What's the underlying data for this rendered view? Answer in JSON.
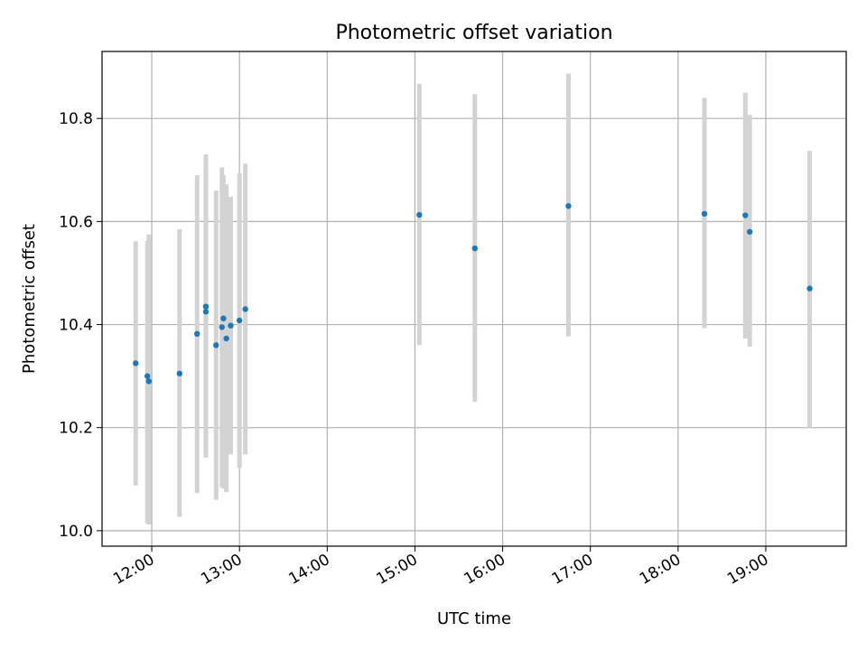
{
  "chart_data": {
    "type": "scatter",
    "title": "Photometric offset variation",
    "xlabel": "UTC time",
    "ylabel": "Photometric offset",
    "x_unit": "hours",
    "xlim": [
      "11:26",
      "19:55"
    ],
    "ylim": [
      9.97,
      10.93
    ],
    "x_ticks": [
      "12:00",
      "13:00",
      "14:00",
      "15:00",
      "16:00",
      "17:00",
      "18:00",
      "19:00"
    ],
    "y_ticks": [
      10.0,
      10.2,
      10.4,
      10.6,
      10.8
    ],
    "y_tick_labels": [
      "10.0",
      "10.2",
      "10.4",
      "10.6",
      "10.8"
    ],
    "grid": true,
    "colors": {
      "point": "#1f77b4",
      "errorbar": "#d3d3d3"
    },
    "series": [
      {
        "points": [
          {
            "x": "11:49",
            "y": 10.325,
            "ylow": 10.088,
            "yhigh": 10.562
          },
          {
            "x": "11:57",
            "y": 10.3,
            "ylow": 10.015,
            "yhigh": 10.562
          },
          {
            "x": "11:58",
            "y": 10.29,
            "ylow": 10.012,
            "yhigh": 10.575
          },
          {
            "x": "12:19",
            "y": 10.305,
            "ylow": 10.027,
            "yhigh": 10.585
          },
          {
            "x": "12:31",
            "y": 10.382,
            "ylow": 10.073,
            "yhigh": 10.69
          },
          {
            "x": "12:37",
            "y": 10.435,
            "ylow": 10.142,
            "yhigh": 10.73
          },
          {
            "x": "12:37",
            "y": 10.425,
            "ylow": 10.142,
            "yhigh": 10.708
          },
          {
            "x": "12:44",
            "y": 10.36,
            "ylow": 10.06,
            "yhigh": 10.66
          },
          {
            "x": "12:48",
            "y": 10.395,
            "ylow": 10.085,
            "yhigh": 10.705
          },
          {
            "x": "12:49",
            "y": 10.412,
            "ylow": 10.082,
            "yhigh": 10.69
          },
          {
            "x": "12:51",
            "y": 10.373,
            "ylow": 10.075,
            "yhigh": 10.672
          },
          {
            "x": "12:54",
            "y": 10.398,
            "ylow": 10.148,
            "yhigh": 10.648
          },
          {
            "x": "13:00",
            "y": 10.408,
            "ylow": 10.122,
            "yhigh": 10.693
          },
          {
            "x": "13:04",
            "y": 10.43,
            "ylow": 10.148,
            "yhigh": 10.712
          },
          {
            "x": "15:03",
            "y": 10.613,
            "ylow": 10.36,
            "yhigh": 10.867
          },
          {
            "x": "15:41",
            "y": 10.548,
            "ylow": 10.25,
            "yhigh": 10.847
          },
          {
            "x": "16:45",
            "y": 10.63,
            "ylow": 10.377,
            "yhigh": 10.887
          },
          {
            "x": "18:18",
            "y": 10.615,
            "ylow": 10.393,
            "yhigh": 10.84
          },
          {
            "x": "18:46",
            "y": 10.612,
            "ylow": 10.373,
            "yhigh": 10.85
          },
          {
            "x": "18:49",
            "y": 10.58,
            "ylow": 10.357,
            "yhigh": 10.807
          },
          {
            "x": "19:30",
            "y": 10.47,
            "ylow": 10.2,
            "yhigh": 10.737
          }
        ]
      }
    ]
  }
}
